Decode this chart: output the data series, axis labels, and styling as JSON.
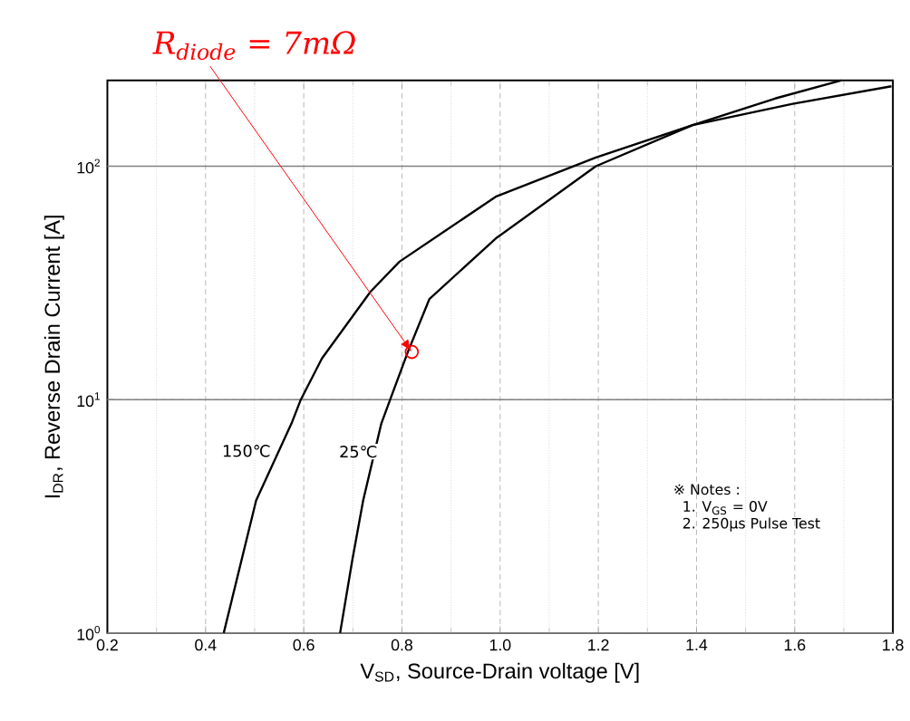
{
  "chart_data": {
    "type": "line",
    "xlabel": "V$_{SD}$, Source-Drain voltage [V]",
    "ylabel": "I$_{DR}$, Reverse Drain Current [A]",
    "log": "y",
    "grid": true,
    "marker": "none",
    "line_style": "solid",
    "xlim": [
      0.2,
      1.8
    ],
    "ylim": [
      1,
      233
    ],
    "xticks": [
      {
        "value": 0.2,
        "label": "0.2"
      },
      {
        "value": 0.4,
        "label": "0.4"
      },
      {
        "value": 0.6,
        "label": "0.6"
      },
      {
        "value": 0.8,
        "label": "0.8"
      },
      {
        "value": 1.0,
        "label": "1.0"
      },
      {
        "value": 1.2,
        "label": "1.2"
      },
      {
        "value": 1.4,
        "label": "1.4"
      },
      {
        "value": 1.6,
        "label": "1.6"
      },
      {
        "value": 1.8,
        "label": "1.8"
      }
    ],
    "yticks": [
      {
        "value": 1,
        "label": "10$^{0}$"
      },
      {
        "value": 10,
        "label": "10$^{1}$"
      },
      {
        "value": 100,
        "label": "10$^{2}$"
      }
    ],
    "series": [
      {
        "name": "150℃",
        "color": "#000000",
        "x": [
          0.437,
          0.503,
          0.575,
          0.594,
          0.637,
          0.736,
          0.795,
          0.991,
          1.195,
          1.392,
          1.596,
          1.797
        ],
        "values": [
          1,
          3.7,
          7.9,
          10,
          15,
          29,
          39,
          74,
          109,
          150,
          185,
          220
        ]
      },
      {
        "name": "25℃",
        "color": "#000000",
        "x": [
          0.674,
          0.699,
          0.721,
          0.758,
          0.776,
          0.812,
          0.856,
          0.991,
          1.195,
          1.392,
          1.56,
          1.694
        ],
        "values": [
          1,
          2.06,
          3.7,
          7.9,
          10,
          16,
          27,
          49,
          100,
          150,
          195,
          233
        ]
      }
    ],
    "annotations": [
      {
        "text": "R$_{diode}$ = 7mΩ",
        "x": 0.82,
        "y": 16
      },
      "※ Notes :",
      "1. V$_{GS}$ = 0V",
      "2. 250μs Pulse Test"
    ]
  }
}
